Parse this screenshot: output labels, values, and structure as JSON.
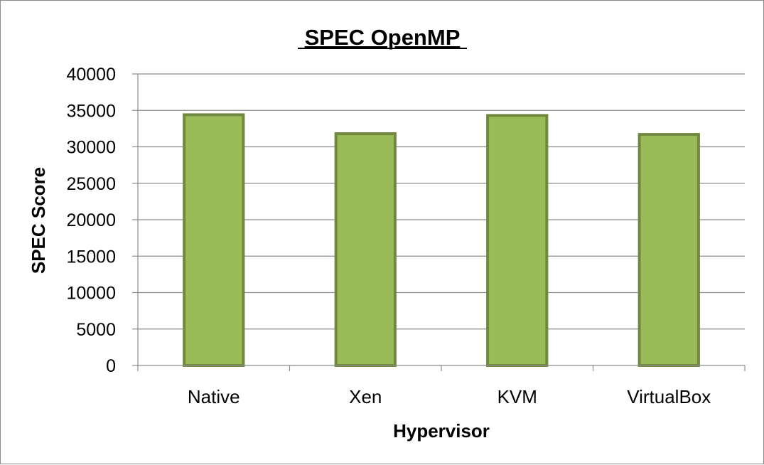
{
  "chart_data": {
    "type": "bar",
    "title": "SPEC OpenMP",
    "xlabel": "Hypervisor",
    "ylabel": "SPEC Score",
    "categories": [
      "Native",
      "Xen",
      "KVM",
      "VirtualBox"
    ],
    "values": [
      34400,
      31800,
      34300,
      31700
    ],
    "ylim": [
      0,
      40000
    ],
    "yticks": [
      0,
      5000,
      10000,
      15000,
      20000,
      25000,
      30000,
      35000,
      40000
    ],
    "grid": true,
    "legend": "none",
    "colors": {
      "bar_fill": "#9bbb59",
      "bar_stroke": "#71893f",
      "grid": "#8c8c8c",
      "axis": "#8c8c8c"
    }
  }
}
